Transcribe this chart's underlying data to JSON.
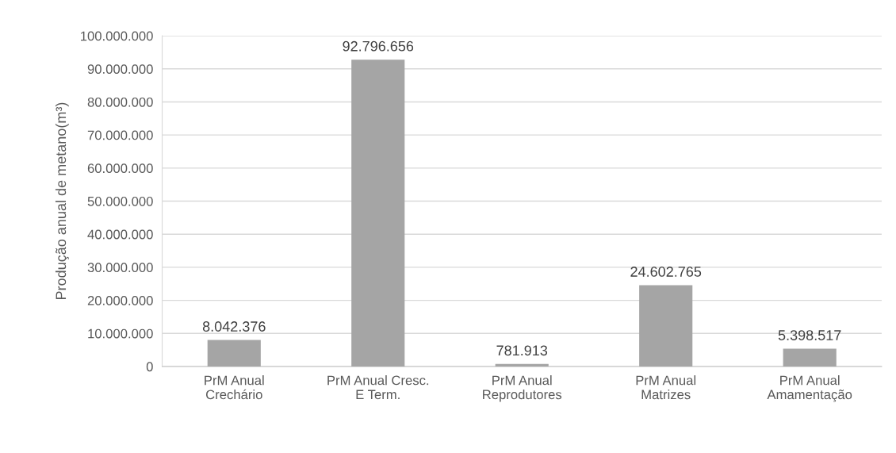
{
  "chart_data": {
    "type": "bar",
    "ylabel": "Produção anual de metano(m³)",
    "categories": [
      "PrM Anual\nCrechário",
      "PrM Anual Cresc.\nE Term.",
      "PrM Anual\nReprodutores",
      "PrM Anual\nMatrizes",
      "PrM Anual\nAmamentação"
    ],
    "values": [
      8042376,
      92796656,
      781913,
      24602765,
      5398517
    ],
    "value_labels": [
      "8.042.376",
      "92.796.656",
      "781.913",
      "24.602.765",
      "5.398.517"
    ],
    "color": "#a5a5a5",
    "ylim": [
      0,
      100000000
    ],
    "yticks": [
      0,
      {
        "value": 10000000,
        "label": "10.000.000"
      },
      {
        "value": 20000000,
        "label": "20.000.000"
      },
      {
        "value": 30000000,
        "label": "30.000.000"
      },
      {
        "value": 40000000,
        "label": "40.000.000"
      },
      {
        "value": 50000000,
        "label": "50.000.000"
      },
      {
        "value": 60000000,
        "label": "60.000.000"
      },
      {
        "value": 70000000,
        "label": "70.000.000"
      },
      {
        "value": 80000000,
        "label": "80.000.000"
      },
      {
        "value": 90000000,
        "label": "90.000.000"
      },
      {
        "value": 100000000,
        "label": "100.000.000"
      }
    ],
    "grid": "y"
  }
}
